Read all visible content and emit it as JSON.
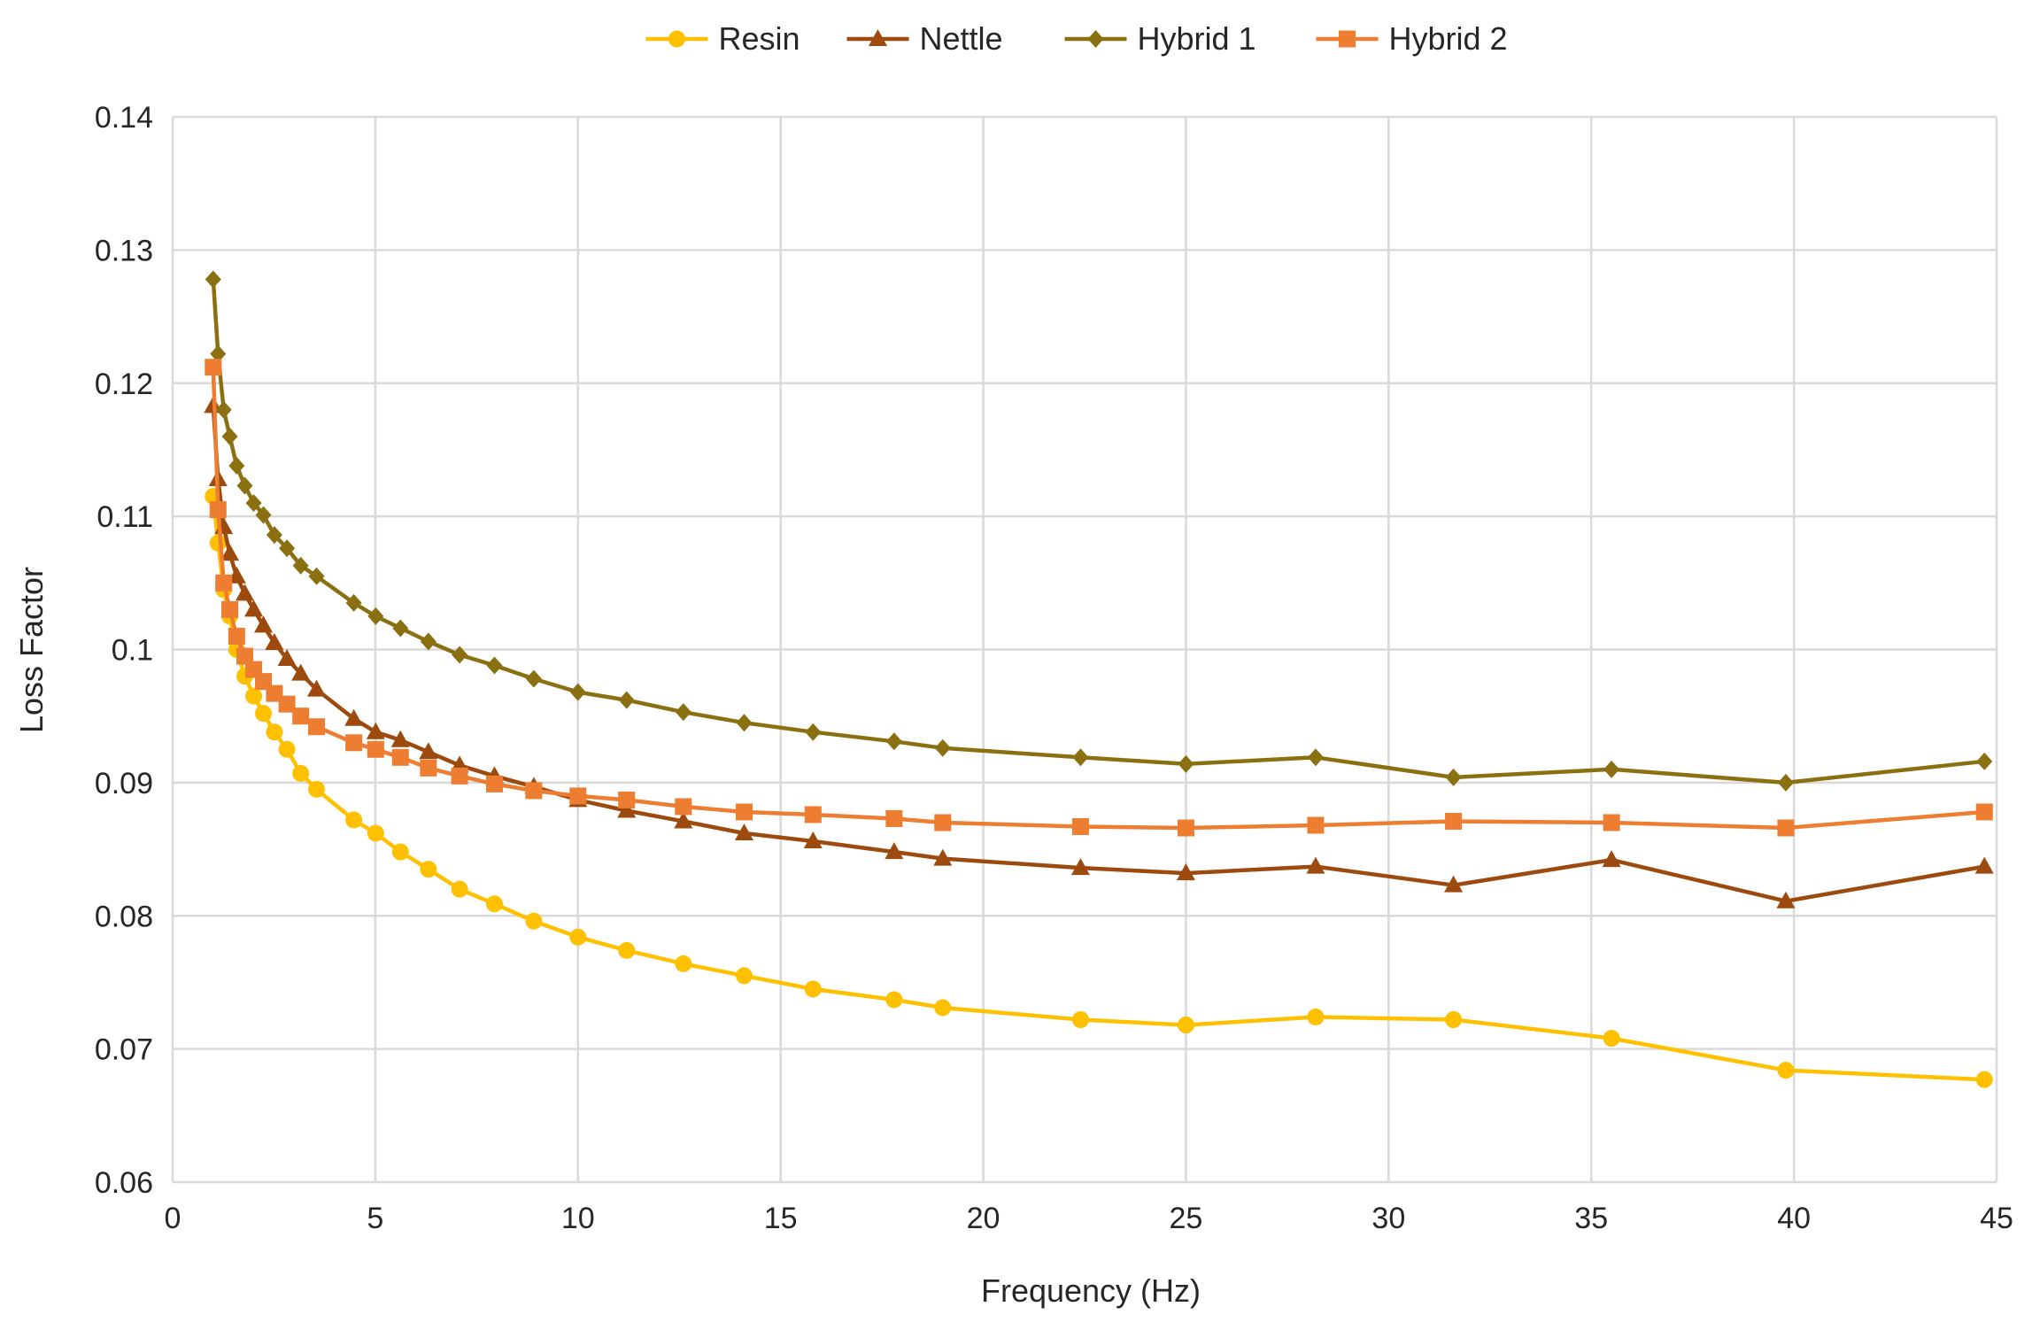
{
  "chart_data": {
    "type": "line",
    "title": "",
    "xlabel": "Frequency (Hz)",
    "ylabel": "Loss Factor",
    "xlim": [
      0,
      45
    ],
    "ylim": [
      0.06,
      0.14
    ],
    "x_ticks": [
      0,
      5,
      10,
      15,
      20,
      25,
      30,
      35,
      40,
      45
    ],
    "y_ticks": [
      0.06,
      0.07,
      0.08,
      0.09,
      0.1,
      0.11,
      0.12,
      0.13,
      0.14
    ],
    "x_tick_labels": [
      "0",
      "5",
      "10",
      "15",
      "20",
      "25",
      "30",
      "35",
      "40",
      "45"
    ],
    "y_tick_labels": [
      "0.06",
      "0.07",
      "0.08",
      "0.09",
      "0.1",
      "0.11",
      "0.12",
      "0.13",
      "0.14"
    ],
    "grid": true,
    "legend_position": "top-center",
    "x": [
      1.0,
      1.12,
      1.26,
      1.41,
      1.58,
      1.78,
      2.0,
      2.24,
      2.51,
      2.82,
      3.16,
      3.55,
      4.47,
      5.01,
      5.62,
      6.31,
      7.08,
      7.94,
      8.91,
      10.0,
      11.2,
      12.6,
      14.1,
      15.8,
      17.8,
      19.0,
      22.4,
      25.0,
      28.2,
      31.6,
      35.5,
      39.8,
      44.7
    ],
    "series": [
      {
        "name": "Resin",
        "color": "#FFC000",
        "marker": "circle",
        "values": [
          0.1115,
          0.108,
          0.1045,
          0.1025,
          0.1,
          0.098,
          0.0965,
          0.0952,
          0.0938,
          0.0925,
          0.0907,
          0.0895,
          0.0872,
          0.0862,
          0.0848,
          0.0835,
          0.082,
          0.0809,
          0.0796,
          0.0784,
          0.0774,
          0.0764,
          0.0755,
          0.0745,
          0.0737,
          0.0731,
          0.0722,
          0.0718,
          0.0724,
          0.0722,
          0.0708,
          0.0684,
          0.0677
        ]
      },
      {
        "name": "Nettle",
        "color": "#9C4A0E",
        "marker": "triangle",
        "values": [
          0.1183,
          0.1128,
          0.1092,
          0.1072,
          0.1055,
          0.1042,
          0.103,
          0.1018,
          0.1005,
          0.0993,
          0.0982,
          0.097,
          0.0948,
          0.0938,
          0.0932,
          0.0923,
          0.0913,
          0.0905,
          0.0897,
          0.0887,
          0.0879,
          0.0871,
          0.0862,
          0.0856,
          0.0848,
          0.0843,
          0.0836,
          0.0832,
          0.0837,
          0.0823,
          0.0842,
          0.0811,
          0.0837
        ]
      },
      {
        "name": "Hybrid 1",
        "color": "#8B7012",
        "marker": "diamond",
        "values": [
          0.1278,
          0.1222,
          0.118,
          0.116,
          0.1138,
          0.1123,
          0.111,
          0.1101,
          0.1086,
          0.1076,
          0.1063,
          0.1055,
          0.1035,
          0.1025,
          0.1016,
          0.1006,
          0.0996,
          0.0988,
          0.0978,
          0.0968,
          0.0962,
          0.0953,
          0.0945,
          0.0938,
          0.0931,
          0.0926,
          0.0919,
          0.0914,
          0.0919,
          0.0904,
          0.091,
          0.09,
          0.0916
        ]
      },
      {
        "name": "Hybrid 2",
        "color": "#ED7D31",
        "marker": "square",
        "values": [
          0.1212,
          0.1105,
          0.105,
          0.103,
          0.101,
          0.0995,
          0.0985,
          0.0976,
          0.0967,
          0.0959,
          0.095,
          0.0942,
          0.093,
          0.0925,
          0.0919,
          0.0911,
          0.0905,
          0.0899,
          0.0894,
          0.089,
          0.0887,
          0.0882,
          0.0878,
          0.0876,
          0.0873,
          0.087,
          0.0867,
          0.0866,
          0.0868,
          0.0871,
          0.087,
          0.0866,
          0.0878
        ]
      }
    ]
  }
}
